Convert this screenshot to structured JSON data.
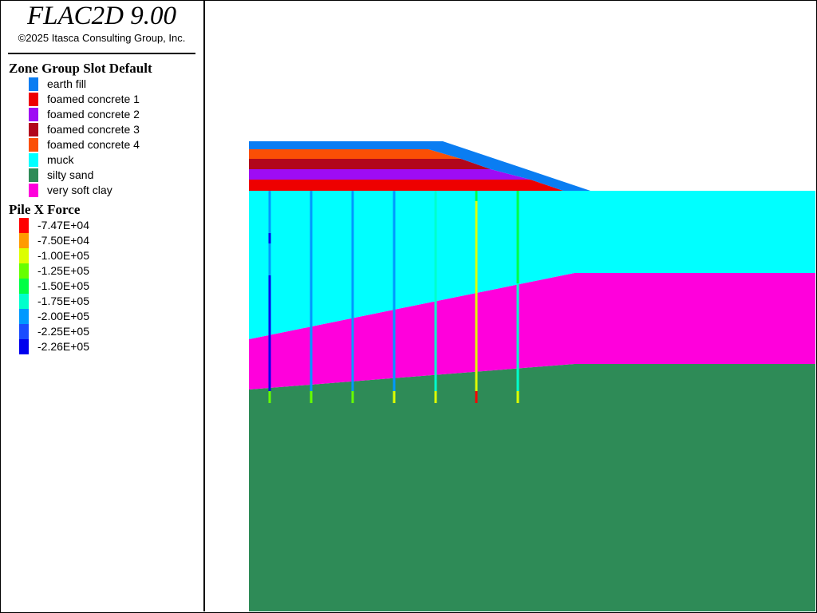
{
  "app": {
    "title": "FLAC2D 9.00",
    "copyright": "©2025 Itasca Consulting Group, Inc."
  },
  "zone_legend": {
    "title": "Zone Group Slot Default",
    "items": [
      {
        "label": "earth fill",
        "color": "#0a7df2"
      },
      {
        "label": "foamed concrete 1",
        "color": "#ee0000"
      },
      {
        "label": "foamed concrete 2",
        "color": "#9e0cf4"
      },
      {
        "label": "foamed concrete 3",
        "color": "#b2071c"
      },
      {
        "label": "foamed concrete 4",
        "color": "#fb4f05"
      },
      {
        "label": "muck",
        "color": "#00ffff"
      },
      {
        "label": "silty sand",
        "color": "#2e8b57"
      },
      {
        "label": "very soft clay",
        "color": "#ff00dc"
      }
    ]
  },
  "pile_legend": {
    "title": "Pile X Force",
    "items": [
      {
        "label": "-7.47E+04",
        "color": "#ff0000"
      },
      {
        "label": "-7.50E+04",
        "color": "#ff9b00"
      },
      {
        "label": "-1.00E+05",
        "color": "#ddff00"
      },
      {
        "label": "-1.25E+05",
        "color": "#66ff00"
      },
      {
        "label": "-1.50E+05",
        "color": "#00ff44"
      },
      {
        "label": "-1.75E+05",
        "color": "#00ffcc"
      },
      {
        "label": "-2.00E+05",
        "color": "#0099ff"
      },
      {
        "label": "-2.25E+05",
        "color": "#1a4cff"
      },
      {
        "label": "-2.26E+05",
        "color": "#0000ee"
      }
    ]
  }
}
